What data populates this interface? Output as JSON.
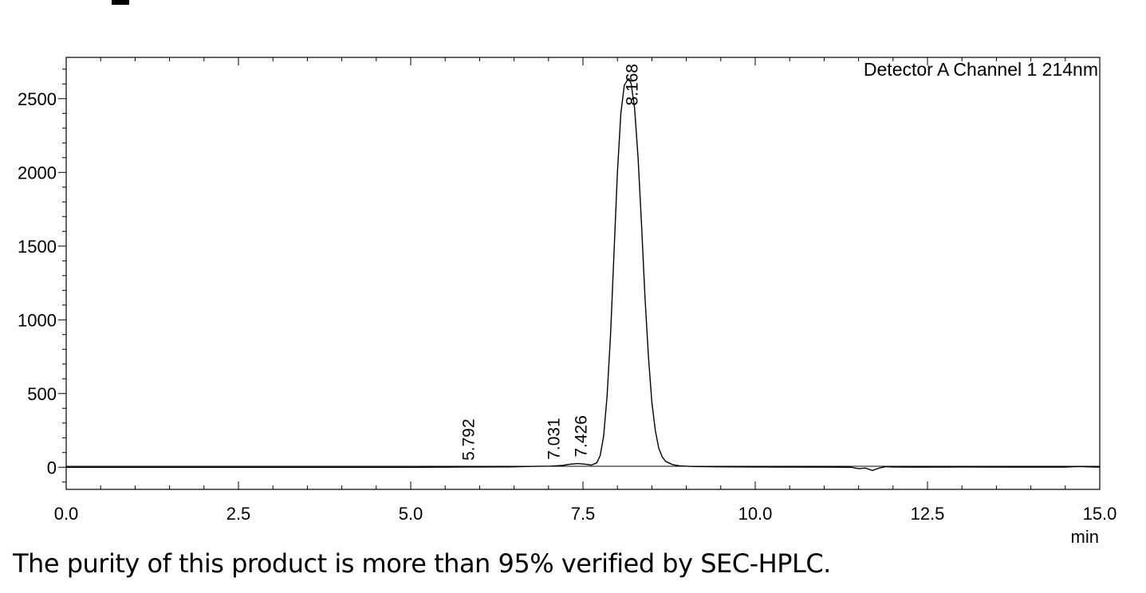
{
  "caption": "The purity of this product is more than 95% verified by SEC-HPLC.",
  "chart_data": {
    "type": "line",
    "title": "",
    "legend": "Detector A Channel 1 214nm",
    "legend_position": "top-right",
    "xlabel": "min",
    "ylabel": "",
    "xlim": [
      0.0,
      15.0
    ],
    "ylim": [
      -150,
      2780
    ],
    "x_ticks": [
      "0.0",
      "2.5",
      "5.0",
      "7.5",
      "10.0",
      "12.5",
      "15.0"
    ],
    "y_ticks": [
      "0",
      "500",
      "1000",
      "1500",
      "2000",
      "2500"
    ],
    "grid": false,
    "peaks": [
      {
        "label": "5.792",
        "x": 5.792,
        "y": 2
      },
      {
        "label": "7.031",
        "x": 7.031,
        "y": 8
      },
      {
        "label": "7.426",
        "x": 7.426,
        "y": 25
      },
      {
        "label": "8.168",
        "x": 8.168,
        "y": 2635
      }
    ],
    "series": [
      {
        "name": "Detector A Channel 1 214nm",
        "x": [
          0.0,
          5.0,
          5.6,
          5.792,
          6.0,
          6.5,
          6.8,
          7.031,
          7.2,
          7.3,
          7.426,
          7.55,
          7.62,
          7.7,
          7.75,
          7.8,
          7.85,
          7.9,
          7.95,
          8.0,
          8.05,
          8.1,
          8.15,
          8.168,
          8.2,
          8.25,
          8.3,
          8.35,
          8.4,
          8.45,
          8.5,
          8.55,
          8.6,
          8.65,
          8.7,
          8.8,
          8.9,
          9.1,
          9.5,
          10.0,
          11.0,
          11.4,
          11.5,
          11.6,
          11.7,
          11.8,
          11.9,
          12.0,
          12.5,
          13.0,
          14.0,
          14.5,
          14.7,
          14.9,
          15.0
        ],
        "y": [
          0,
          0,
          1,
          2,
          2,
          3,
          6,
          8,
          12,
          20,
          25,
          20,
          15,
          30,
          80,
          210,
          480,
          900,
          1450,
          2000,
          2400,
          2590,
          2630,
          2635,
          2600,
          2430,
          2100,
          1650,
          1150,
          750,
          440,
          250,
          130,
          70,
          40,
          18,
          10,
          5,
          3,
          2,
          1,
          0,
          -10,
          -5,
          -22,
          -5,
          4,
          2,
          1,
          2,
          1,
          1,
          5,
          2,
          1
        ]
      }
    ]
  }
}
